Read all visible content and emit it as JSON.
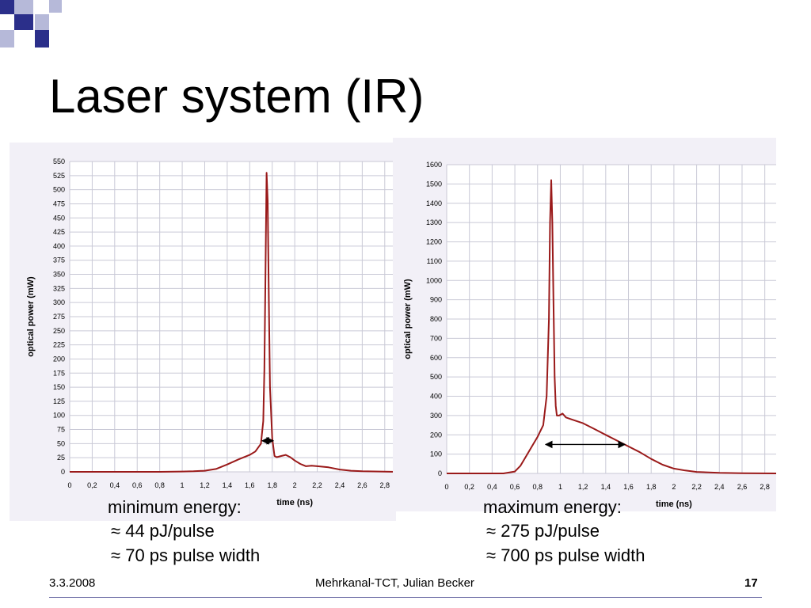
{
  "slide": {
    "title": "Laser system (IR)",
    "footer": {
      "date": "3.3.2008",
      "center": "Mehrkanal-TCT, Julian Becker",
      "page": "17"
    },
    "colors": {
      "logo_dark": "#2b2f8a",
      "logo_light": "#b6b9d9",
      "plot_bg": "#f2f0f7",
      "grid": "#c9c9d6",
      "trace": "#9a1a1a"
    }
  },
  "panels": [
    {
      "energy_label": "minimum energy:",
      "bullets": [
        "44 pJ/pulse",
        "70 ps pulse width"
      ],
      "bullet_symbol": "≈"
    },
    {
      "energy_label": "maximum energy:",
      "bullets": [
        "275 pJ/pulse",
        "700 ps pulse width"
      ],
      "bullet_symbol": "≈"
    }
  ],
  "chart_data": [
    {
      "type": "line",
      "title": "",
      "xlabel": "time (ns)",
      "ylabel": "optical power (mW)",
      "xlim": [
        0,
        2.9
      ],
      "ylim": [
        0,
        550
      ],
      "x_ticks": [
        0,
        0.2,
        0.4,
        0.6,
        0.8,
        1,
        1.2,
        1.4,
        1.6,
        1.8,
        2,
        2.2,
        2.4,
        2.6,
        2.8
      ],
      "x_tick_labels": [
        "0",
        "0,2",
        "0,4",
        "0,6",
        "0,8",
        "1",
        "1,2",
        "1,4",
        "1,6",
        "1,8",
        "2",
        "2,2",
        "2,4",
        "2,6",
        "2,8"
      ],
      "y_ticks": [
        0,
        25,
        50,
        75,
        100,
        125,
        150,
        175,
        200,
        225,
        250,
        275,
        300,
        325,
        350,
        375,
        400,
        425,
        450,
        475,
        500,
        525,
        550
      ],
      "y_tick_labels": [
        "0",
        "25",
        "50",
        "75",
        "100",
        "125",
        "150",
        "175",
        "200",
        "225",
        "250",
        "275",
        "300",
        "325",
        "350",
        "375",
        "400",
        "425",
        "450",
        "475",
        "500",
        "525",
        "550"
      ],
      "grid": true,
      "series": [
        {
          "x": [
            0,
            0.8,
            1.0,
            1.1,
            1.2,
            1.3,
            1.4,
            1.5,
            1.6,
            1.65,
            1.7,
            1.72,
            1.73,
            1.74,
            1.75,
            1.76,
            1.77,
            1.78,
            1.8,
            1.82,
            1.84,
            1.88,
            1.92,
            1.96,
            2.0,
            2.05,
            2.1,
            2.15,
            2.2,
            2.3,
            2.4,
            2.5,
            2.6,
            2.9
          ],
          "y": [
            0,
            0,
            0.5,
            1,
            2,
            5,
            13,
            22,
            30,
            36,
            50,
            90,
            180,
            350,
            530,
            480,
            300,
            150,
            60,
            28,
            26,
            28,
            30,
            26,
            20,
            14,
            10,
            11,
            10,
            8,
            4,
            2,
            1,
            0
          ]
        }
      ],
      "annotations": [
        {
          "type": "double-arrow",
          "x": [
            1.71,
            1.81
          ],
          "y": 55,
          "meaning": "pulse width"
        }
      ]
    },
    {
      "type": "line",
      "title": "",
      "xlabel": "time (ns)",
      "ylabel": "optical power (mW)",
      "xlim": [
        0,
        2.9
      ],
      "ylim": [
        0,
        1600
      ],
      "x_ticks": [
        0,
        0.2,
        0.4,
        0.6,
        0.8,
        1,
        1.2,
        1.4,
        1.6,
        1.8,
        2,
        2.2,
        2.4,
        2.6,
        2.8
      ],
      "x_tick_labels": [
        "0",
        "0,2",
        "0,4",
        "0,6",
        "0,8",
        "1",
        "1,2",
        "1,4",
        "1,6",
        "1,8",
        "2",
        "2,2",
        "2,4",
        "2,6",
        "2,8"
      ],
      "y_ticks": [
        0,
        100,
        200,
        300,
        400,
        500,
        600,
        700,
        800,
        900,
        1000,
        1100,
        1200,
        1300,
        1400,
        1500,
        1600
      ],
      "y_tick_labels": [
        "0",
        "100",
        "200",
        "300",
        "400",
        "500",
        "600",
        "700",
        "800",
        "900",
        "1000",
        "1100",
        "1200",
        "1300",
        "1400",
        "1500",
        "1600"
      ],
      "grid": true,
      "series": [
        {
          "x": [
            0,
            0.5,
            0.6,
            0.65,
            0.7,
            0.75,
            0.8,
            0.85,
            0.88,
            0.9,
            0.91,
            0.92,
            0.93,
            0.94,
            0.95,
            0.96,
            0.97,
            0.99,
            1.02,
            1.05,
            1.1,
            1.2,
            1.3,
            1.4,
            1.5,
            1.6,
            1.7,
            1.8,
            1.9,
            2.0,
            2.1,
            2.2,
            2.4,
            2.6,
            2.9
          ],
          "y": [
            0,
            0,
            10,
            40,
            90,
            140,
            190,
            250,
            400,
            800,
            1300,
            1520,
            1300,
            900,
            500,
            350,
            300,
            300,
            310,
            290,
            280,
            260,
            230,
            200,
            170,
            140,
            110,
            75,
            45,
            25,
            15,
            8,
            3,
            1,
            0
          ]
        }
      ],
      "annotations": [
        {
          "type": "double-arrow",
          "x": [
            0.87,
            1.57
          ],
          "y": 150,
          "meaning": "pulse width"
        }
      ]
    }
  ]
}
